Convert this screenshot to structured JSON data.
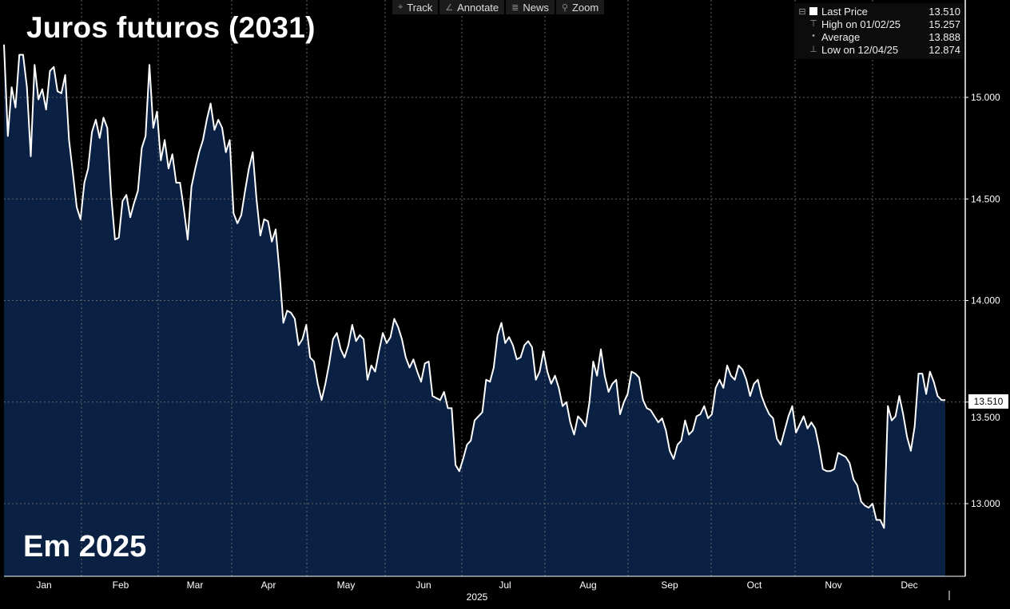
{
  "chart_data": {
    "type": "area",
    "title": "Juros futuros (2031)",
    "subtitle": "Em 2025",
    "xlabel": "2025",
    "x_ticks": [
      "Jan",
      "Feb",
      "Mar",
      "Apr",
      "May",
      "Jun",
      "Jul",
      "Aug",
      "Sep",
      "Oct",
      "Nov",
      "Dec"
    ],
    "y_ticks": [
      "15.000",
      "14.500",
      "14.000",
      "13.500",
      "13.000"
    ],
    "ylim": [
      12.7,
      15.48
    ],
    "grid": true,
    "line_color": "#ffffff",
    "fill_color": "#0a2144",
    "series": [
      {
        "name": "Last Price",
        "values": [
          15.26,
          14.81,
          15.05,
          14.95,
          15.21,
          15.21,
          15.05,
          14.71,
          15.16,
          14.99,
          15.04,
          14.94,
          15.13,
          15.15,
          15.03,
          15.02,
          15.11,
          14.79,
          14.63,
          14.46,
          14.4,
          14.58,
          14.65,
          14.83,
          14.89,
          14.8,
          14.9,
          14.85,
          14.52,
          14.3,
          14.31,
          14.49,
          14.52,
          14.41,
          14.48,
          14.54,
          14.75,
          14.81,
          15.16,
          14.85,
          14.93,
          14.69,
          14.79,
          14.65,
          14.72,
          14.58,
          14.58,
          14.45,
          14.3,
          14.56,
          14.65,
          14.73,
          14.79,
          14.89,
          14.97,
          14.84,
          14.89,
          14.85,
          14.73,
          14.79,
          14.43,
          14.38,
          14.42,
          14.54,
          14.65,
          14.73,
          14.5,
          14.32,
          14.4,
          14.39,
          14.29,
          14.35,
          14.14,
          13.89,
          13.95,
          13.94,
          13.91,
          13.78,
          13.81,
          13.88,
          13.72,
          13.7,
          13.59,
          13.51,
          13.59,
          13.69,
          13.81,
          13.84,
          13.76,
          13.72,
          13.78,
          13.88,
          13.8,
          13.83,
          13.81,
          13.61,
          13.68,
          13.65,
          13.75,
          13.84,
          13.79,
          13.82,
          13.91,
          13.87,
          13.81,
          13.72,
          13.67,
          13.71,
          13.65,
          13.6,
          13.69,
          13.7,
          13.53,
          13.52,
          13.51,
          13.55,
          13.47,
          13.47,
          13.19,
          13.16,
          13.22,
          13.29,
          13.31,
          13.41,
          13.43,
          13.45,
          13.61,
          13.6,
          13.67,
          13.83,
          13.89,
          13.79,
          13.82,
          13.78,
          13.71,
          13.72,
          13.78,
          13.8,
          13.77,
          13.61,
          13.65,
          13.75,
          13.65,
          13.59,
          13.63,
          13.57,
          13.48,
          13.5,
          13.4,
          13.34,
          13.43,
          13.41,
          13.38,
          13.5,
          13.7,
          13.63,
          13.76,
          13.63,
          13.55,
          13.59,
          13.61,
          13.44,
          13.5,
          13.54,
          13.65,
          13.64,
          13.62,
          13.51,
          13.47,
          13.46,
          13.43,
          13.4,
          13.42,
          13.36,
          13.26,
          13.22,
          13.29,
          13.31,
          13.41,
          13.34,
          13.36,
          13.43,
          13.44,
          13.48,
          13.42,
          13.44,
          13.57,
          13.61,
          13.57,
          13.68,
          13.63,
          13.61,
          13.68,
          13.66,
          13.61,
          13.53,
          13.59,
          13.61,
          13.53,
          13.48,
          13.44,
          13.42,
          13.32,
          13.29,
          13.36,
          13.43,
          13.48,
          13.35,
          13.39,
          13.43,
          13.37,
          13.4,
          13.37,
          13.28,
          13.17,
          13.16,
          13.16,
          13.17,
          13.25,
          13.24,
          13.23,
          13.2,
          13.12,
          13.09,
          13.01,
          12.99,
          12.98,
          13.0,
          12.92,
          12.92,
          12.88,
          13.48,
          13.41,
          13.43,
          13.53,
          13.44,
          13.33,
          13.26,
          13.38,
          13.64,
          13.64,
          13.54,
          13.65,
          13.6,
          13.53,
          13.51,
          13.51
        ]
      }
    ]
  },
  "toolbar": [
    {
      "icon": "crosshair-icon",
      "glyph": "⌖",
      "label": "Track"
    },
    {
      "icon": "pencil-icon",
      "glyph": "∠",
      "label": "Annotate"
    },
    {
      "icon": "news-icon",
      "glyph": "≣",
      "label": "News"
    },
    {
      "icon": "zoom-icon",
      "glyph": "⚲",
      "label": "Zoom"
    }
  ],
  "legend": {
    "last_label": "Last Price",
    "last_value": "13.510",
    "high_label": "High on 01/02/25",
    "high_value": "15.257",
    "avg_label": "Average",
    "avg_value": "13.888",
    "low_label": "Low on 12/04/25",
    "low_value": "12.874"
  },
  "last_price_tag": "13.510"
}
